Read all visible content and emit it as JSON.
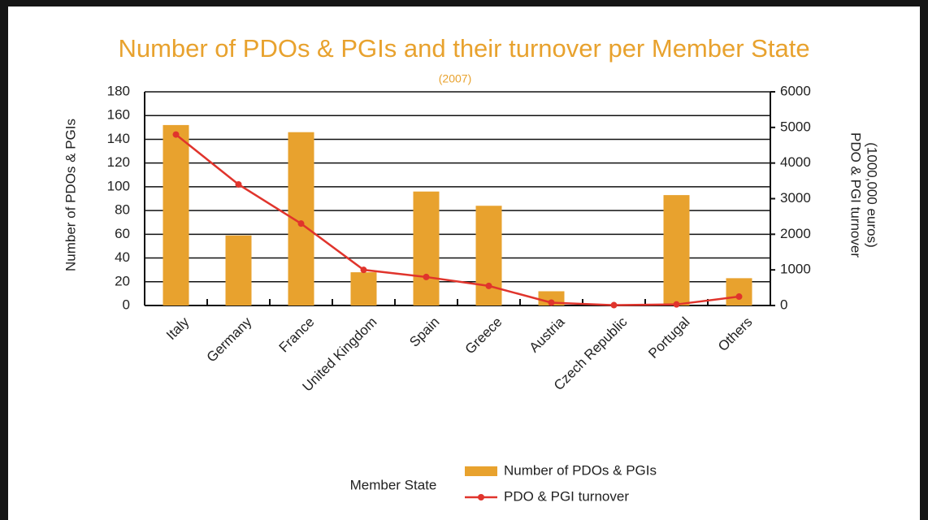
{
  "chart_data": {
    "type": "bar_line",
    "title": "Number of PDOs & PGIs and their turnover per Member State",
    "subtitle": "(2007)",
    "ylabel": "Number of PDOs & PGIs",
    "y2label": [
      "PDO & PGI turnover",
      "(1000,000 euros)"
    ],
    "xlabel": "Member State",
    "categories": [
      "Italy",
      "Germany",
      "France",
      "United Kingdom",
      "Spain",
      "Greece",
      "Austria",
      "Czech Republic",
      "Portugal",
      "Others"
    ],
    "series": [
      {
        "name": "Number of PDOs & PGIs",
        "color": "#e8a22e",
        "kind": "bar",
        "values": [
          152,
          59,
          146,
          28,
          96,
          84,
          12,
          0,
          93,
          23
        ]
      },
      {
        "name": "PDO & PGI turnover",
        "color": "#e0342c",
        "kind": "line",
        "axis": "y2",
        "values": [
          4800,
          3400,
          2300,
          1000,
          800,
          550,
          80,
          10,
          30,
          250
        ]
      }
    ],
    "ylim": [
      0,
      180
    ],
    "yticks": [
      0,
      20,
      40,
      60,
      80,
      100,
      120,
      140,
      160,
      180
    ],
    "y2lim": [
      0,
      6000
    ],
    "y2ticks": [
      0,
      1000,
      2000,
      3000,
      4000,
      5000,
      6000
    ],
    "grid": true
  }
}
